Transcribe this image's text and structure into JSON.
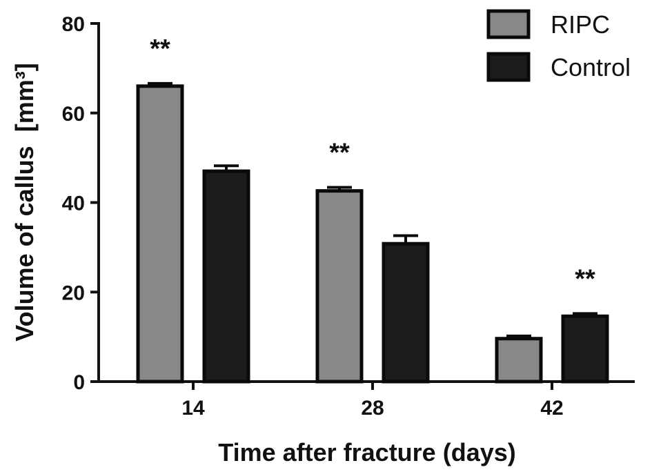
{
  "chart_data": {
    "type": "bar",
    "categories": [
      "14",
      "28",
      "42"
    ],
    "series": [
      {
        "name": "RIPC",
        "color": "#888888",
        "values": [
          66,
          42.6,
          9.6
        ],
        "errors": [
          0.6,
          0.8,
          0.6
        ],
        "annotations": [
          "**",
          "**",
          ""
        ]
      },
      {
        "name": "Control",
        "color": "#1c1c1c",
        "values": [
          47,
          30.8,
          14.6
        ],
        "errors": [
          1.2,
          1.8,
          0.6
        ],
        "annotations": [
          "",
          "",
          "**"
        ]
      }
    ],
    "xlabel": "Time after fracture (days)",
    "ylabel": "Volume of callus",
    "ylabel_unit": "[mm³]",
    "ylim": [
      0,
      80
    ],
    "yticks": [
      0,
      20,
      40,
      60,
      80
    ],
    "legend": {
      "position": "top-right",
      "entries": [
        "RIPC",
        "Control"
      ]
    },
    "grid": false
  }
}
